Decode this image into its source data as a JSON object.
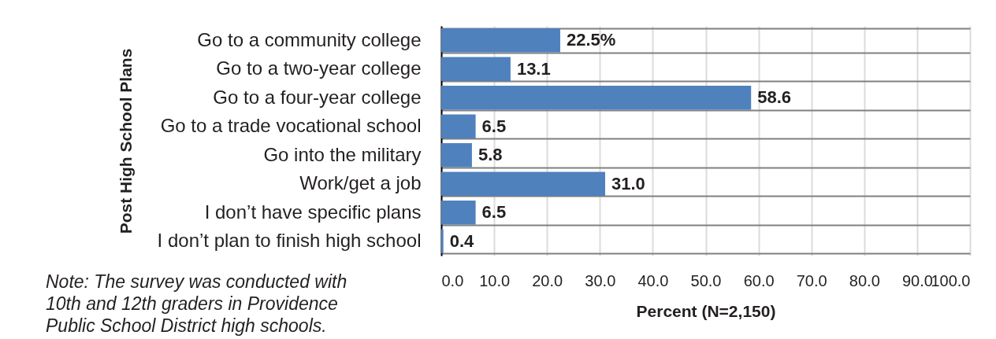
{
  "chart_data": {
    "type": "bar",
    "orientation": "horizontal",
    "ylabel": "Post High School Plans",
    "xlabel": "Percent (N=2,150)",
    "categories": [
      "Go to a community college",
      "Go to a two-year college",
      "Go to a four-year college",
      "Go to a trade vocational school",
      "Go into the military",
      "Work/get a job",
      "I don’t have specific plans",
      "I don’t plan to finish high school"
    ],
    "values": [
      22.5,
      13.1,
      58.6,
      6.5,
      5.8,
      31.0,
      6.5,
      0.4
    ],
    "value_labels": [
      "22.5%",
      "13.1",
      "58.6",
      "6.5",
      "5.8",
      "31.0",
      "6.5",
      "0.4"
    ],
    "color": "#4f81bd",
    "xlim": [
      0,
      100
    ],
    "xticks": [
      {
        "value": 0,
        "label": "0.0"
      },
      {
        "value": 10,
        "label": "10.0"
      },
      {
        "value": 20,
        "label": "20.0"
      },
      {
        "value": 30,
        "label": "30.0"
      },
      {
        "value": 40,
        "label": "40.0"
      },
      {
        "value": 50,
        "label": "50.0"
      },
      {
        "value": 60,
        "label": "60.0"
      },
      {
        "value": 70,
        "label": "70.0"
      },
      {
        "value": 80,
        "label": "80.0"
      },
      {
        "value": 90,
        "label": "90.0"
      },
      {
        "value": 100,
        "label": "100.0"
      }
    ],
    "grid": true,
    "annotations": [
      "Note: The survey was conducted with 10th and 12th graders in Providence Public School District high schools."
    ]
  }
}
